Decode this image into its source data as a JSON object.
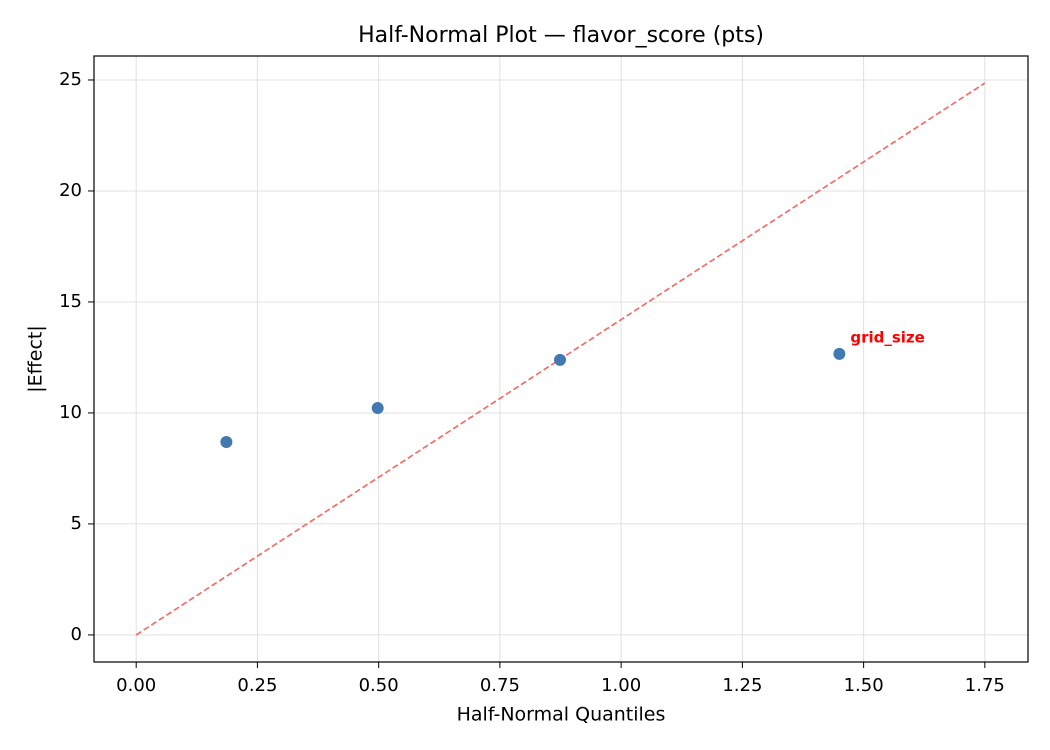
{
  "chart_data": {
    "type": "scatter",
    "title": "Half-Normal Plot — flavor_score (pts)",
    "x_label": "Half-Normal Quantiles",
    "y_label": "|Effect|",
    "x": [
      0.186,
      0.498,
      0.874,
      1.45
    ],
    "values": [
      8.69,
      10.22,
      12.39,
      12.66
    ],
    "color": "#4279b0",
    "reference_line": {
      "x": [
        0,
        1.75
      ],
      "y": [
        0,
        24.86
      ],
      "color": "#f8665f",
      "dashed": true
    },
    "annotations": [
      {
        "text": "grid_size",
        "x": 1.45,
        "y": 12.66,
        "color": "#ff0000"
      }
    ],
    "xlim": [
      -0.087,
      1.839
    ],
    "ylim": [
      -1.22,
      26.08
    ],
    "xticks": [
      {
        "value": 0,
        "label": "0.00"
      },
      {
        "value": 0.25,
        "label": "0.25"
      },
      {
        "value": 0.5,
        "label": "0.50"
      },
      {
        "value": 0.75,
        "label": "0.75"
      },
      {
        "value": 1,
        "label": "1.00"
      },
      {
        "value": 1.25,
        "label": "1.25"
      },
      {
        "value": 1.5,
        "label": "1.50"
      },
      {
        "value": 1.75,
        "label": "1.75"
      }
    ],
    "yticks": [
      0,
      5,
      10,
      15,
      20,
      25
    ],
    "grid": true
  }
}
